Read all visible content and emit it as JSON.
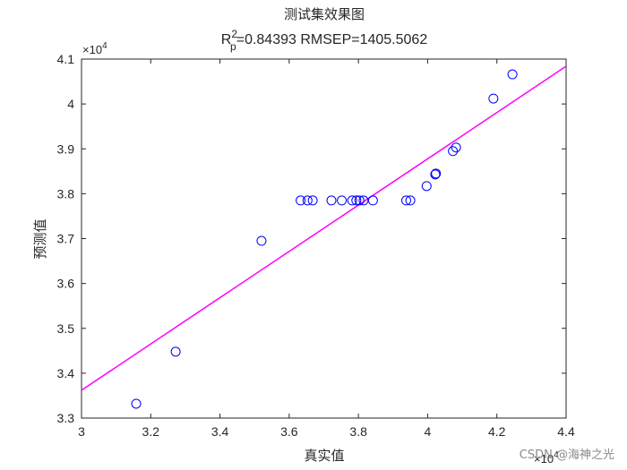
{
  "chart_data": {
    "type": "scatter",
    "title": "测试集效果图",
    "subtitle": {
      "r_main": "R",
      "r_sup": "2",
      "r_sub": "p",
      "rest": "=0.84393  RMSEP=1405.5062"
    },
    "xlabel": "真实值",
    "ylabel": "预测值",
    "x_exponent": {
      "base": "×10",
      "power": "4"
    },
    "y_exponent": {
      "base": "×10",
      "power": "4"
    },
    "xlim": [
      3.0,
      4.4
    ],
    "ylim": [
      3.3,
      4.1
    ],
    "xticks": [
      "3",
      "3.2",
      "3.4",
      "3.6",
      "3.8",
      "4",
      "4.2",
      "4.4"
    ],
    "yticks": [
      "3.3",
      "3.4",
      "3.5",
      "3.6",
      "3.7",
      "3.8",
      "3.9",
      "4",
      "4.1"
    ],
    "grid": false,
    "marker_color": "#0000ff",
    "line_color": "#ff00ff",
    "fit_line": {
      "x": [
        3.0,
        4.4
      ],
      "y": [
        3.362,
        4.084
      ]
    },
    "points": [
      {
        "x": 3.158,
        "y": 3.332
      },
      {
        "x": 3.272,
        "y": 3.448
      },
      {
        "x": 3.52,
        "y": 3.695
      },
      {
        "x": 3.633,
        "y": 3.785
      },
      {
        "x": 3.653,
        "y": 3.785
      },
      {
        "x": 3.668,
        "y": 3.785
      },
      {
        "x": 3.722,
        "y": 3.785
      },
      {
        "x": 3.752,
        "y": 3.785
      },
      {
        "x": 3.782,
        "y": 3.785
      },
      {
        "x": 3.794,
        "y": 3.785
      },
      {
        "x": 3.803,
        "y": 3.785
      },
      {
        "x": 3.815,
        "y": 3.785
      },
      {
        "x": 3.842,
        "y": 3.785
      },
      {
        "x": 3.938,
        "y": 3.785
      },
      {
        "x": 3.95,
        "y": 3.785
      },
      {
        "x": 3.997,
        "y": 3.817
      },
      {
        "x": 4.022,
        "y": 3.843
      },
      {
        "x": 4.024,
        "y": 3.845
      },
      {
        "x": 4.073,
        "y": 3.895
      },
      {
        "x": 4.082,
        "y": 3.903
      },
      {
        "x": 4.19,
        "y": 4.012
      },
      {
        "x": 4.245,
        "y": 4.066
      }
    ]
  },
  "watermark": "CSDN @海神之光"
}
